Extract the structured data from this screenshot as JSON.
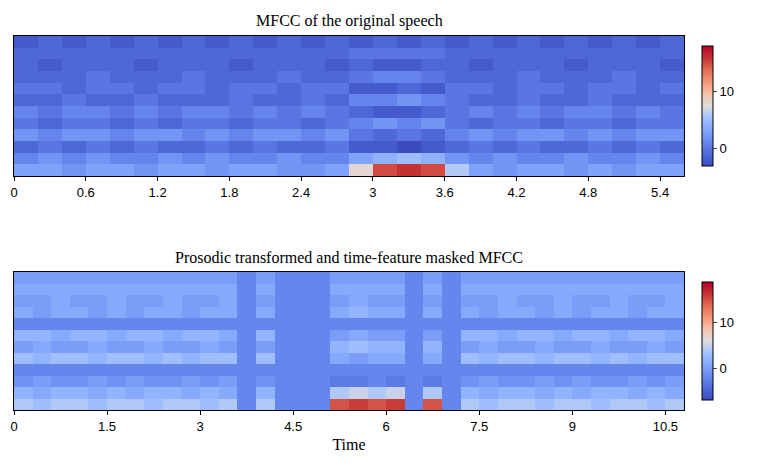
{
  "chart_data": [
    {
      "type": "heatmap",
      "title": "MFCC of the original speech",
      "color": "coolwarm",
      "tick_labels": "x",
      "x": [
        0.1,
        0.3,
        0.5,
        0.7,
        0.9,
        1.1,
        1.3,
        1.5,
        1.7,
        1.9,
        2.1,
        2.3,
        2.5,
        2.7,
        2.9,
        3.1,
        3.3,
        3.5,
        3.7,
        3.9,
        4.1,
        4.3,
        4.5,
        4.7,
        4.9,
        5.1,
        5.3,
        5.5
      ],
      "xlim": [
        0,
        5.6
      ],
      "xticks": [
        0,
        0.6,
        1.2,
        1.8,
        2.4,
        3,
        3.6,
        4.2,
        4.8,
        5.4
      ],
      "zlim": [
        -3,
        18
      ],
      "zticks": [
        0,
        10
      ],
      "cells": [
        [
          3,
          3,
          2,
          3,
          3,
          2,
          3,
          3,
          2,
          3,
          3,
          2,
          2,
          3,
          8,
          15,
          16,
          15,
          6,
          3,
          2,
          3,
          3,
          2,
          3,
          2,
          3,
          3
        ],
        [
          1,
          2,
          1,
          2,
          1,
          1,
          2,
          1,
          2,
          1,
          1,
          2,
          1,
          1,
          3,
          4,
          5,
          4,
          2,
          1,
          2,
          1,
          1,
          2,
          1,
          1,
          2,
          1
        ],
        [
          -1,
          0,
          -1,
          0,
          -1,
          0,
          -1,
          -1,
          0,
          -1,
          0,
          -1,
          -1,
          0,
          -2,
          -2,
          -3,
          -2,
          -1,
          0,
          -1,
          0,
          -1,
          -1,
          0,
          -1,
          0,
          -1
        ],
        [
          2,
          1,
          2,
          2,
          1,
          2,
          2,
          1,
          2,
          1,
          2,
          2,
          1,
          2,
          0,
          -1,
          0,
          -1,
          1,
          2,
          1,
          2,
          2,
          1,
          2,
          1,
          2,
          2
        ],
        [
          0,
          -1,
          0,
          0,
          -1,
          0,
          -1,
          0,
          0,
          -1,
          0,
          0,
          -1,
          0,
          1,
          2,
          1,
          2,
          0,
          -1,
          0,
          0,
          -1,
          0,
          0,
          -1,
          0,
          0
        ],
        [
          1,
          0,
          1,
          1,
          0,
          1,
          0,
          1,
          1,
          0,
          1,
          0,
          1,
          0,
          -1,
          -2,
          -2,
          -1,
          0,
          1,
          0,
          1,
          0,
          1,
          1,
          0,
          1,
          0
        ],
        [
          -1,
          -1,
          0,
          -1,
          -1,
          0,
          -1,
          -1,
          -1,
          0,
          -1,
          -1,
          0,
          -1,
          1,
          1,
          2,
          1,
          0,
          -1,
          -1,
          0,
          -1,
          -1,
          0,
          -1,
          -1,
          -1
        ],
        [
          0,
          0,
          -1,
          0,
          0,
          -1,
          0,
          0,
          -1,
          0,
          0,
          -1,
          0,
          0,
          -2,
          -2,
          -1,
          -2,
          0,
          0,
          -1,
          0,
          0,
          -1,
          0,
          0,
          -1,
          0
        ],
        [
          -1,
          -1,
          -1,
          0,
          -1,
          -1,
          -1,
          0,
          -1,
          -1,
          -1,
          0,
          -1,
          -1,
          0,
          1,
          1,
          0,
          -1,
          -1,
          -1,
          0,
          -1,
          -1,
          -1,
          0,
          -1,
          -1
        ],
        [
          -1,
          -2,
          -1,
          -1,
          -1,
          -2,
          -1,
          -1,
          -1,
          -2,
          -1,
          -1,
          -1,
          -2,
          -1,
          -2,
          -2,
          -1,
          -1,
          -2,
          -1,
          -1,
          -1,
          -2,
          -1,
          -1,
          -1,
          -2
        ],
        [
          -1,
          -1,
          -1,
          -1,
          -1,
          -1,
          -1,
          -1,
          -1,
          -1,
          -1,
          -1,
          -1,
          -1,
          0,
          0,
          0,
          0,
          -1,
          -1,
          -1,
          -1,
          -1,
          -1,
          -1,
          -1,
          -1,
          -1
        ],
        [
          -2,
          -1,
          -2,
          -1,
          -2,
          -1,
          -2,
          -1,
          -2,
          -1,
          -2,
          -1,
          -2,
          -1,
          -2,
          -1,
          -2,
          -1,
          -2,
          -1,
          -2,
          -1,
          -2,
          -1,
          -2,
          -1,
          -2,
          -1
        ]
      ]
    },
    {
      "type": "heatmap",
      "title": "Prosodic transformed and time-feature masked MFCC",
      "xlabel": "Time",
      "color": "coolwarm",
      "tick_labels": "x",
      "x": [
        0.15,
        0.45,
        0.75,
        1.05,
        1.35,
        1.65,
        1.95,
        2.25,
        2.55,
        2.85,
        3.15,
        3.45,
        3.75,
        4.05,
        4.35,
        4.65,
        4.95,
        5.25,
        5.55,
        5.85,
        6.15,
        6.45,
        6.75,
        7.05,
        7.35,
        7.65,
        7.95,
        8.25,
        8.55,
        8.85,
        9.15,
        9.45,
        9.75,
        10.05,
        10.35,
        10.65
      ],
      "xlim": [
        0,
        10.8
      ],
      "xticks": [
        0,
        1.5,
        3,
        4.5,
        6,
        7.5,
        9,
        10.5
      ],
      "zlim": [
        -7,
        19
      ],
      "zticks": [
        0,
        10
      ],
      "cells": [
        [
          4,
          3,
          4,
          4,
          3,
          4,
          4,
          3,
          4,
          4,
          3,
          4,
          -2,
          4,
          -2,
          -2,
          -2,
          15,
          16,
          15,
          16,
          -2,
          15,
          -2,
          4,
          3,
          4,
          4,
          3,
          4,
          4,
          3,
          4,
          4,
          3,
          4
        ],
        [
          2,
          1,
          2,
          2,
          1,
          2,
          1,
          2,
          2,
          1,
          2,
          1,
          -2,
          2,
          -2,
          -2,
          -2,
          4,
          5,
          4,
          5,
          -2,
          4,
          -2,
          2,
          1,
          2,
          2,
          1,
          2,
          1,
          2,
          2,
          1,
          2,
          1
        ],
        [
          -1,
          0,
          -1,
          -1,
          0,
          -1,
          0,
          -1,
          -1,
          0,
          -1,
          0,
          -2,
          -1,
          -2,
          -2,
          -2,
          -3,
          -3,
          -2,
          -3,
          -2,
          -3,
          -2,
          -1,
          0,
          -1,
          -1,
          0,
          -1,
          0,
          -1,
          -1,
          0,
          -1,
          0
        ],
        [
          -2,
          -2,
          -2,
          -2,
          -2,
          -2,
          -2,
          -2,
          -2,
          -2,
          -2,
          -2,
          -2,
          -2,
          -2,
          -2,
          -2,
          -2,
          -2,
          -2,
          -2,
          -2,
          -2,
          -2,
          -2,
          -2,
          -2,
          -2,
          -2,
          -2,
          -2,
          -2,
          -2,
          -2,
          -2,
          -2
        ],
        [
          3,
          2,
          3,
          3,
          2,
          3,
          3,
          2,
          3,
          2,
          3,
          3,
          -2,
          3,
          -2,
          -2,
          -2,
          1,
          0,
          1,
          1,
          -2,
          1,
          -2,
          3,
          2,
          3,
          3,
          2,
          3,
          3,
          2,
          3,
          2,
          3,
          3
        ],
        [
          0,
          1,
          0,
          0,
          1,
          0,
          0,
          1,
          0,
          0,
          1,
          0,
          -2,
          0,
          -2,
          -2,
          -2,
          2,
          3,
          2,
          2,
          -2,
          2,
          -2,
          0,
          1,
          0,
          0,
          1,
          0,
          0,
          1,
          0,
          0,
          1,
          0
        ],
        [
          2,
          2,
          1,
          2,
          2,
          1,
          2,
          2,
          1,
          2,
          2,
          1,
          -2,
          2,
          -2,
          -2,
          -2,
          0,
          1,
          0,
          0,
          -2,
          0,
          -2,
          2,
          2,
          1,
          2,
          2,
          1,
          2,
          2,
          1,
          2,
          2,
          1
        ],
        [
          -2,
          -2,
          -2,
          -2,
          -2,
          -2,
          -2,
          -2,
          -2,
          -2,
          -2,
          -2,
          -2,
          -2,
          -2,
          -2,
          -2,
          -2,
          -2,
          -2,
          -2,
          -2,
          -2,
          -2,
          -2,
          -2,
          -2,
          -2,
          -2,
          -2,
          -2,
          -2,
          -2,
          -2,
          -2,
          -2
        ],
        [
          1,
          0,
          1,
          1,
          0,
          1,
          0,
          1,
          1,
          0,
          1,
          1,
          -2,
          1,
          -2,
          -2,
          -2,
          1,
          2,
          1,
          1,
          -2,
          1,
          -2,
          1,
          0,
          1,
          1,
          0,
          1,
          0,
          1,
          1,
          0,
          1,
          1
        ],
        [
          0,
          0,
          1,
          0,
          0,
          1,
          0,
          0,
          1,
          0,
          0,
          1,
          -2,
          0,
          -2,
          -2,
          -2,
          0,
          1,
          0,
          0,
          -2,
          0,
          -2,
          0,
          0,
          1,
          0,
          0,
          1,
          0,
          0,
          1,
          0,
          0,
          1
        ],
        [
          1,
          1,
          1,
          1,
          1,
          1,
          1,
          1,
          1,
          1,
          1,
          1,
          -2,
          1,
          -2,
          -2,
          -2,
          1,
          1,
          1,
          1,
          -2,
          1,
          -2,
          1,
          1,
          1,
          1,
          1,
          1,
          1,
          1,
          1,
          1,
          1,
          1
        ],
        [
          0,
          0,
          0,
          0,
          0,
          0,
          0,
          0,
          0,
          0,
          0,
          0,
          -2,
          0,
          -2,
          -2,
          -2,
          0,
          0,
          0,
          0,
          -2,
          0,
          -2,
          0,
          0,
          0,
          0,
          0,
          0,
          0,
          0,
          0,
          0,
          0,
          0
        ]
      ]
    }
  ]
}
